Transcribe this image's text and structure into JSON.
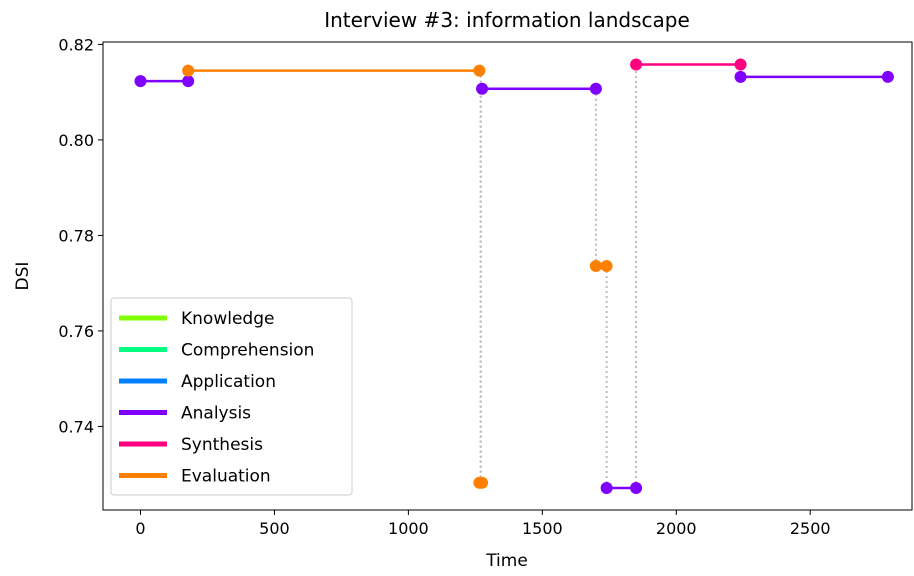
{
  "chart_data": {
    "type": "line",
    "title": "Interview #3: information landscape",
    "xlabel": "Time",
    "ylabel": "DSI",
    "xlim": [
      -140,
      2880
    ],
    "ylim": [
      0.7225,
      0.8205
    ],
    "xticks": [
      0,
      500,
      1000,
      1500,
      2000,
      2500
    ],
    "xtick_labels": [
      "0",
      "500",
      "1000",
      "1500",
      "2000",
      "2500"
    ],
    "yticks": [
      0.74,
      0.76,
      0.78,
      0.8,
      0.82
    ],
    "ytick_labels": [
      "0.74",
      "0.76",
      "0.78",
      "0.80",
      "0.82"
    ],
    "grid": false,
    "legend": {
      "placement": "lower-left",
      "entries": [
        {
          "name": "Knowledge",
          "color": "#80ff00"
        },
        {
          "name": "Comprehension",
          "color": "#00ff80"
        },
        {
          "name": "Application",
          "color": "#0080ff"
        },
        {
          "name": "Analysis",
          "color": "#8000ff"
        },
        {
          "name": "Synthesis",
          "color": "#ff0080"
        },
        {
          "name": "Evaluation",
          "color": "#ff8000"
        }
      ]
    },
    "segments": [
      {
        "category": "Analysis",
        "color": "#8000ff",
        "x": [
          0,
          178
        ],
        "y": [
          0.8123,
          0.8123
        ]
      },
      {
        "category": "Evaluation",
        "color": "#ff8000",
        "x": [
          178,
          1265
        ],
        "y": [
          0.8145,
          0.8145
        ]
      },
      {
        "category": "Evaluation",
        "color": "#ff8000",
        "x": [
          1265,
          1275
        ],
        "y": [
          0.7282,
          0.7282
        ]
      },
      {
        "category": "Analysis",
        "color": "#8000ff",
        "x": [
          1275,
          1700
        ],
        "y": [
          0.8107,
          0.8107
        ]
      },
      {
        "category": "Evaluation",
        "color": "#ff8000",
        "x": [
          1700,
          1740
        ],
        "y": [
          0.7736,
          0.7736
        ]
      },
      {
        "category": "Analysis",
        "color": "#8000ff",
        "x": [
          1740,
          1850
        ],
        "y": [
          0.7271,
          0.7271
        ]
      },
      {
        "category": "Synthesis",
        "color": "#ff0080",
        "x": [
          1850,
          2240
        ],
        "y": [
          0.8158,
          0.8158
        ]
      },
      {
        "category": "Analysis",
        "color": "#8000ff",
        "x": [
          2240,
          2790
        ],
        "y": [
          0.8132,
          0.8132
        ]
      }
    ],
    "transitions": [
      {
        "x": 1270,
        "y": [
          0.8145,
          0.7282
        ]
      },
      {
        "x": 1270,
        "y": [
          0.7282,
          0.8107
        ]
      },
      {
        "x": 1700,
        "y": [
          0.8107,
          0.7736
        ]
      },
      {
        "x": 1740,
        "y": [
          0.7736,
          0.7271
        ]
      },
      {
        "x": 1850,
        "y": [
          0.7271,
          0.8158
        ]
      }
    ]
  }
}
